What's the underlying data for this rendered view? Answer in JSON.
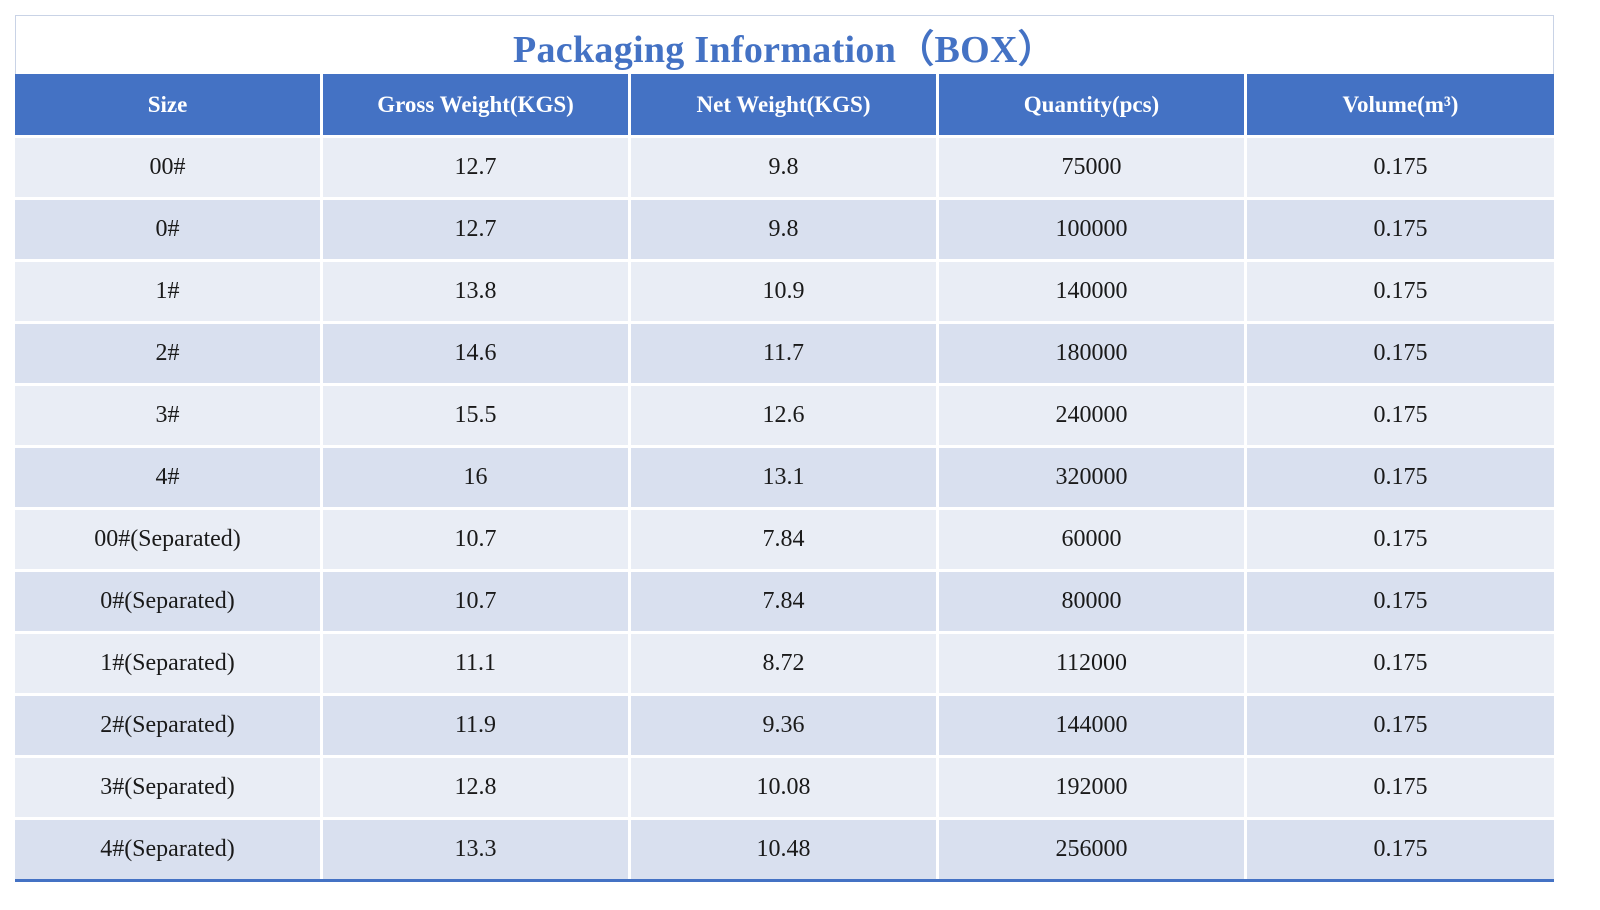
{
  "header": {
    "title": "Packaging Information（BOX）"
  },
  "table": {
    "columns": [
      "Size",
      "Gross Weight(KGS)",
      "Net Weight(KGS)",
      "Quantity(pcs)",
      "Volume(m³)"
    ],
    "rows": [
      [
        "00#",
        "12.7",
        "9.8",
        "75000",
        "0.175"
      ],
      [
        "0#",
        "12.7",
        "9.8",
        "100000",
        "0.175"
      ],
      [
        "1#",
        "13.8",
        "10.9",
        "140000",
        "0.175"
      ],
      [
        "2#",
        "14.6",
        "11.7",
        "180000",
        "0.175"
      ],
      [
        "3#",
        "15.5",
        "12.6",
        "240000",
        "0.175"
      ],
      [
        "4#",
        "16",
        "13.1",
        "320000",
        "0.175"
      ],
      [
        "00#(Separated)",
        "10.7",
        "7.84",
        "60000",
        "0.175"
      ],
      [
        "0#(Separated)",
        "10.7",
        "7.84",
        "80000",
        "0.175"
      ],
      [
        "1#(Separated)",
        "11.1",
        "8.72",
        "112000",
        "0.175"
      ],
      [
        "2#(Separated)",
        "11.9",
        "9.36",
        "144000",
        "0.175"
      ],
      [
        "3#(Separated)",
        "12.8",
        "10.08",
        "192000",
        "0.175"
      ],
      [
        "4#(Separated)",
        "13.3",
        "10.48",
        "256000",
        "0.175"
      ]
    ]
  }
}
